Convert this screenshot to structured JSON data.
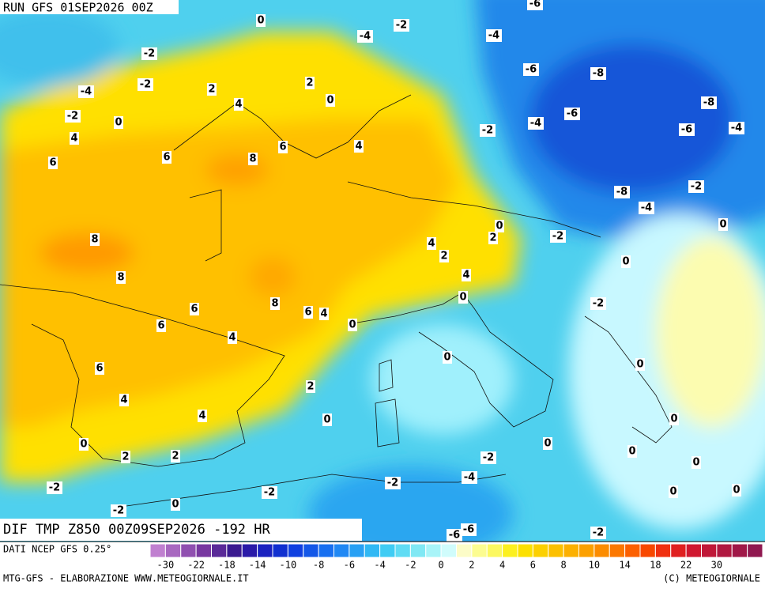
{
  "header": {
    "run": "RUN GFS 01SEP2026 00Z",
    "field": "DIF TMP Z850 00Z09SEP2026 -192 HR"
  },
  "contour_labels": [
    -6,
    0,
    -2,
    -4,
    -4,
    -2,
    -2,
    -4,
    -6,
    -8,
    2,
    2,
    4,
    0,
    -8,
    -2,
    0,
    -6,
    -4,
    -2,
    -6,
    -4,
    4,
    6,
    4,
    6,
    6,
    8,
    -8,
    -2,
    -4,
    0,
    2,
    0,
    -2,
    4,
    8,
    2,
    0,
    8,
    4,
    0,
    -2,
    8,
    6,
    6,
    4,
    0,
    6,
    4,
    0,
    0,
    6,
    2,
    4,
    4,
    0,
    0,
    0,
    0,
    0,
    2,
    2,
    -2,
    0,
    -4,
    -2,
    -2,
    -2,
    0,
    0,
    0,
    -2,
    -6,
    -6,
    -2
  ],
  "legend": {
    "ticks": [
      -30,
      -22,
      -18,
      -14,
      -10,
      -8,
      -6,
      -4,
      -2,
      0,
      2,
      4,
      6,
      8,
      10,
      14,
      18,
      22,
      30
    ],
    "colors": [
      "#c080d0",
      "#a868c0",
      "#9050b0",
      "#7838a0",
      "#5a2a98",
      "#3a1a90",
      "#2a1aa8",
      "#1a22c0",
      "#1030d0",
      "#1040e0",
      "#1458e8",
      "#1870f0",
      "#2088f4",
      "#28a0f4",
      "#30b8f4",
      "#40ccf4",
      "#60dcf4",
      "#80e8f4",
      "#a8f4f8",
      "#d0fcfc",
      "#fcfcc8",
      "#fcfc90",
      "#fcf860",
      "#fcf020",
      "#fce000",
      "#fcd000",
      "#fcc000",
      "#fcb000",
      "#fca000",
      "#fc8c00",
      "#fc7800",
      "#fc6000",
      "#f84800",
      "#f03010",
      "#e02020",
      "#d01830",
      "#c01838",
      "#b01840",
      "#a01848",
      "#901850"
    ],
    "source": "DATI NCEP GFS 0.25°"
  },
  "footer": {
    "left": "MTG-GFS - ELABORAZIONE WWW.METEOGIORNALE.IT",
    "right": "(C) METEOGIORNALE"
  }
}
